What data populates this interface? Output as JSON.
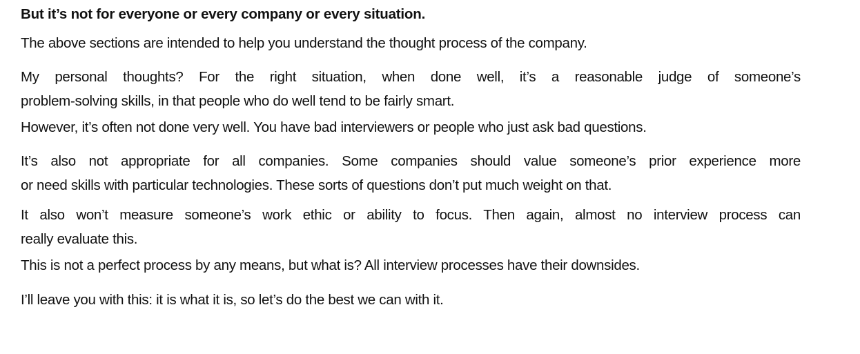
{
  "document": {
    "heading": "But it’s not for everyone or every company or every situation.",
    "paragraphs": [
      {
        "lines": [
          "The above sections are intended to help you understand the thought process of the company."
        ]
      },
      {
        "lines": [
          "My personal thoughts? For the right situation, when done well, it’s a reasonable judge of someone’s",
          "problem-solving skills, in that people who do well tend to be fairly smart."
        ]
      },
      {
        "lines": [
          "However, it’s often not done very well. You have bad interviewers or people who just ask bad questions."
        ]
      },
      {
        "lines": [
          "It’s also not appropriate for all companies. Some companies should value someone’s prior experience more",
          "or need skills with particular technologies. These sorts of questions don’t put much weight on that."
        ]
      },
      {
        "lines": [
          "It also won’t measure someone’s work ethic or ability to focus. Then again, almost no interview process can",
          "really evaluate this."
        ]
      },
      {
        "lines": [
          "This is not a perfect process by any means, but what is? All interview processes have their downsides."
        ]
      },
      {
        "lines": [
          "I’ll leave you with this: it is what it is, so let’s do the best we can with it."
        ]
      }
    ]
  }
}
